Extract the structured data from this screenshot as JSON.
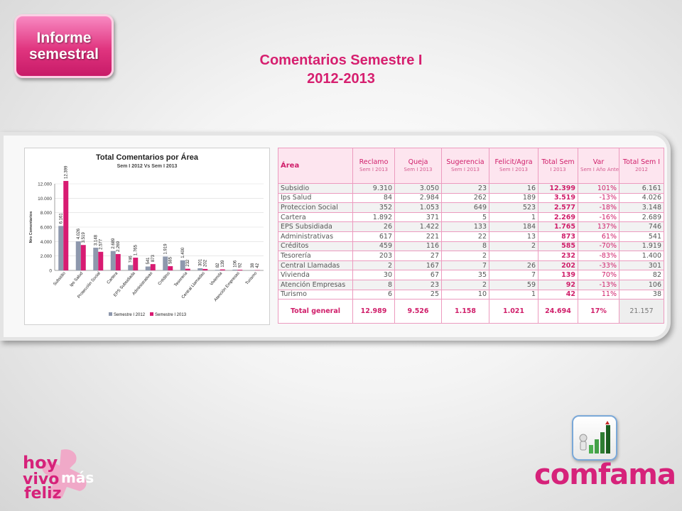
{
  "badge": {
    "line1": "Informe",
    "line2": "semestral"
  },
  "page": {
    "title_line1": "Comentarios Semestre I",
    "title_line2": "2012-2013"
  },
  "colors": {
    "accent": "#d61f6f",
    "series_2012": "#8e98ad",
    "series_2013": "#d81b72",
    "table_border": "#ec9bbf"
  },
  "chart_data": {
    "type": "bar",
    "title": "Total Comentarios por Área",
    "subtitle": "Sem I 2012 Vs Sem I 2013",
    "ylabel": "Nro Comentarios",
    "xlabel": "",
    "ylim": [
      0,
      12000
    ],
    "yticks": [
      0,
      2000,
      4000,
      6000,
      8000,
      10000,
      12000
    ],
    "ytick_labels": [
      "0",
      "2.000",
      "4.000",
      "6.000",
      "8.000",
      "10.000",
      "12.000"
    ],
    "grid": true,
    "legend": "bottom",
    "categories": [
      "Subsidio",
      "Ips Salud",
      "Protección Social",
      "Cartera",
      "EPS Subsidiada",
      "Administrativas",
      "Créditos",
      "Tesorería",
      "Central Llamadas",
      "Vivienda",
      "Atención Empresas",
      "Turismo"
    ],
    "series": [
      {
        "name": "Semestre I 2012",
        "values": [
          6161,
          4026,
          3148,
          2689,
          746,
          541,
          1919,
          1400,
          301,
          82,
          106,
          38
        ],
        "labels": [
          "6.161",
          "4.026",
          "3.148",
          "2.689",
          "746",
          "541",
          "1.919",
          "1.400",
          "301",
          "82",
          "106",
          "38"
        ]
      },
      {
        "name": "Semestre I 2013",
        "values": [
          12399,
          3519,
          2577,
          2269,
          1765,
          873,
          585,
          232,
          202,
          139,
          92,
          42
        ],
        "labels": [
          "12.399",
          "3.519",
          "2.577",
          "2.269",
          "1.765",
          "873",
          "585",
          "232",
          "202",
          "139",
          "92",
          "42"
        ]
      }
    ]
  },
  "table": {
    "headers": [
      {
        "label": "Área",
        "sub": ""
      },
      {
        "label": "Reclamo",
        "sub": "Sem I 2013"
      },
      {
        "label": "Queja",
        "sub": "Sem I 2013"
      },
      {
        "label": "Sugerencia",
        "sub": "Sem I 2013"
      },
      {
        "label": "Felicit/Agra",
        "sub": "Sem I 2013"
      },
      {
        "label": "Total Sem",
        "sub": "I 2013"
      },
      {
        "label": "Var",
        "sub": "Sem I Año Anterior"
      },
      {
        "label": "Total Sem I",
        "sub": "2012"
      }
    ],
    "rows": [
      [
        "Subsidio",
        "9.310",
        "3.050",
        "23",
        "16",
        "12.399",
        "101%",
        "6.161"
      ],
      [
        "Ips Salud",
        "84",
        "2.984",
        "262",
        "189",
        "3.519",
        "-13%",
        "4.026"
      ],
      [
        "Proteccion Social",
        "352",
        "1.053",
        "649",
        "523",
        "2.577",
        "-18%",
        "3.148"
      ],
      [
        "Cartera",
        "1.892",
        "371",
        "5",
        "1",
        "2.269",
        "-16%",
        "2.689"
      ],
      [
        "EPS Subsidiada",
        "26",
        "1.422",
        "133",
        "184",
        "1.765",
        "137%",
        "746"
      ],
      [
        "Administrativas",
        "617",
        "221",
        "22",
        "13",
        "873",
        "61%",
        "541"
      ],
      [
        "Créditos",
        "459",
        "116",
        "8",
        "2",
        "585",
        "-70%",
        "1.919"
      ],
      [
        "Tesorería",
        "203",
        "27",
        "2",
        "",
        "232",
        "-83%",
        "1.400"
      ],
      [
        "Central Llamadas",
        "2",
        "167",
        "7",
        "26",
        "202",
        "-33%",
        "301"
      ],
      [
        "Vivienda",
        "30",
        "67",
        "35",
        "7",
        "139",
        "70%",
        "82"
      ],
      [
        "Atención Empresas",
        "8",
        "23",
        "2",
        "59",
        "92",
        "-13%",
        "106"
      ],
      [
        "Turismo",
        "6",
        "25",
        "10",
        "1",
        "42",
        "11%",
        "38"
      ]
    ],
    "total": [
      "Total general",
      "12.989",
      "9.526",
      "1.158",
      "1.021",
      "24.694",
      "17%",
      "21.157"
    ]
  },
  "logos": {
    "left": {
      "line1": "hoy",
      "line2": "vivo",
      "line3": "feliz",
      "plus_word": "más"
    },
    "right": "comfama",
    "app_icon": "growth-chart-icon"
  }
}
